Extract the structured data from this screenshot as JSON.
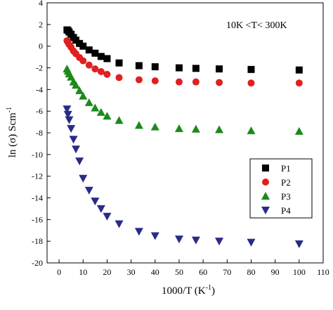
{
  "chart_data": {
    "type": "scatter",
    "xlabel": "1000/T (K",
    "xlabel_sup": "-1",
    "xlabel_close": ")",
    "ylabel": "ln (σ) Scm",
    "ylabel_sup": "-1",
    "annotation": "10K <T< 300K",
    "xlim": [
      -5,
      110
    ],
    "ylim": [
      -20,
      4
    ],
    "xticks": [
      0,
      10,
      20,
      30,
      40,
      50,
      60,
      70,
      80,
      90,
      100,
      110
    ],
    "yticks": [
      4,
      2,
      0,
      -2,
      -4,
      -6,
      -8,
      -10,
      -12,
      -14,
      -16,
      -18,
      -20
    ],
    "grid": false,
    "legend_position": "right",
    "series": [
      {
        "name": "P1",
        "marker": "square",
        "color": "#000000",
        "points": [
          [
            3.3,
            1.5
          ],
          [
            3.7,
            1.45
          ],
          [
            4.2,
            1.3
          ],
          [
            5,
            1.1
          ],
          [
            6,
            0.8
          ],
          [
            7,
            0.55
          ],
          [
            8.5,
            0.25
          ],
          [
            10,
            0
          ],
          [
            12.5,
            -0.35
          ],
          [
            15,
            -0.65
          ],
          [
            17.5,
            -0.95
          ],
          [
            20,
            -1.15
          ],
          [
            25,
            -1.55
          ],
          [
            33.3,
            -1.8
          ],
          [
            40,
            -1.9
          ],
          [
            50,
            -2.0
          ],
          [
            57,
            -2.05
          ],
          [
            66.7,
            -2.1
          ],
          [
            80,
            -2.15
          ],
          [
            100,
            -2.2
          ]
        ]
      },
      {
        "name": "P2",
        "marker": "circle",
        "color": "#e02020",
        "points": [
          [
            3.3,
            0.5
          ],
          [
            3.7,
            0.35
          ],
          [
            4.2,
            0.15
          ],
          [
            5,
            -0.1
          ],
          [
            6,
            -0.45
          ],
          [
            7,
            -0.7
          ],
          [
            8.5,
            -1.05
          ],
          [
            10,
            -1.35
          ],
          [
            12.5,
            -1.75
          ],
          [
            15,
            -2.1
          ],
          [
            17.5,
            -2.35
          ],
          [
            20,
            -2.6
          ],
          [
            25,
            -2.9
          ],
          [
            33.3,
            -3.1
          ],
          [
            40,
            -3.2
          ],
          [
            50,
            -3.3
          ],
          [
            57,
            -3.3
          ],
          [
            66.7,
            -3.35
          ],
          [
            80,
            -3.4
          ],
          [
            100,
            -3.4
          ]
        ]
      },
      {
        "name": "P3",
        "marker": "triangle-up",
        "color": "#1a8a1a",
        "points": [
          [
            3.3,
            -2.1
          ],
          [
            3.7,
            -2.3
          ],
          [
            4.2,
            -2.55
          ],
          [
            5,
            -2.85
          ],
          [
            6,
            -3.3
          ],
          [
            7,
            -3.6
          ],
          [
            8.5,
            -4.1
          ],
          [
            10,
            -4.6
          ],
          [
            12.5,
            -5.2
          ],
          [
            15,
            -5.7
          ],
          [
            17.5,
            -6.1
          ],
          [
            20,
            -6.45
          ],
          [
            25,
            -6.85
          ],
          [
            33.3,
            -7.3
          ],
          [
            40,
            -7.45
          ],
          [
            50,
            -7.6
          ],
          [
            57,
            -7.65
          ],
          [
            66.7,
            -7.7
          ],
          [
            80,
            -7.8
          ],
          [
            100,
            -7.85
          ]
        ]
      },
      {
        "name": "P4",
        "marker": "triangle-down",
        "color": "#2a2a8a",
        "points": [
          [
            3.3,
            -5.8
          ],
          [
            3.7,
            -6.3
          ],
          [
            4.2,
            -6.8
          ],
          [
            5,
            -7.6
          ],
          [
            6,
            -8.6
          ],
          [
            7,
            -9.5
          ],
          [
            8.5,
            -10.6
          ],
          [
            10,
            -12.2
          ],
          [
            12.5,
            -13.3
          ],
          [
            15,
            -14.3
          ],
          [
            17.5,
            -15.0
          ],
          [
            20,
            -15.7
          ],
          [
            25,
            -16.4
          ],
          [
            33.3,
            -17.1
          ],
          [
            40,
            -17.5
          ],
          [
            50,
            -17.8
          ],
          [
            57,
            -17.9
          ],
          [
            66.7,
            -18.0
          ],
          [
            80,
            -18.1
          ],
          [
            100,
            -18.25
          ]
        ]
      }
    ]
  }
}
